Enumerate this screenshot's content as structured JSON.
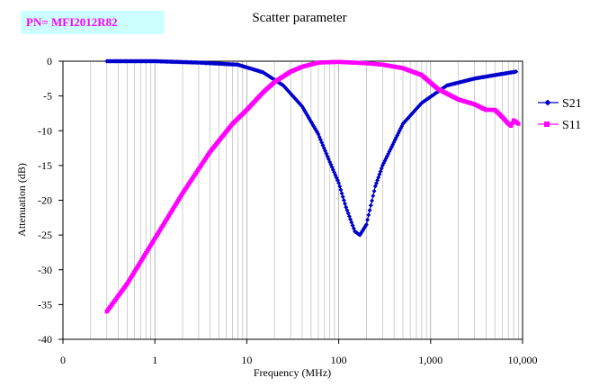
{
  "header": {
    "part_number": "PN= MFI2012R82"
  },
  "chart_data": {
    "type": "scatter",
    "title": "Scatter parameter",
    "xlabel": "Frequency (MHz)",
    "ylabel": "Attenuation (dB)",
    "xscale": "log (with 0 label at left)",
    "xlim": [
      0.1,
      10000
    ],
    "ylim": [
      -40,
      0
    ],
    "x_tick_labels": [
      "0",
      "1",
      "10",
      "100",
      "1,000",
      "10,000"
    ],
    "x_tick_values": [
      0.1,
      1,
      10,
      100,
      1000,
      10000
    ],
    "y_tick_labels": [
      "0",
      "-5",
      "-10",
      "-15",
      "-20",
      "-25",
      "-30",
      "-35",
      "-40"
    ],
    "y_tick_values": [
      0,
      -5,
      -10,
      -15,
      -20,
      -25,
      -30,
      -35,
      -40
    ],
    "grid": "vertical log gridlines",
    "legend_position": "right",
    "series": [
      {
        "name": "S21",
        "color": "#0000cc",
        "marker": "diamond",
        "points": [
          [
            0.3,
            0.0
          ],
          [
            1,
            0.0
          ],
          [
            3,
            -0.2
          ],
          [
            8,
            -0.5
          ],
          [
            15,
            -1.6
          ],
          [
            25,
            -3.5
          ],
          [
            40,
            -6.5
          ],
          [
            60,
            -10.5
          ],
          [
            80,
            -14.5
          ],
          [
            100,
            -17.5
          ],
          [
            120,
            -21
          ],
          [
            150,
            -24.5
          ],
          [
            170,
            -25
          ],
          [
            200,
            -23.5
          ],
          [
            250,
            -18
          ],
          [
            300,
            -15
          ],
          [
            500,
            -9
          ],
          [
            800,
            -6
          ],
          [
            1500,
            -3.5
          ],
          [
            3000,
            -2.5
          ],
          [
            5000,
            -2
          ],
          [
            8500,
            -1.5
          ]
        ]
      },
      {
        "name": "S11",
        "color": "#ff00ff",
        "marker": "square",
        "points": [
          [
            0.3,
            -36
          ],
          [
            0.5,
            -32
          ],
          [
            1,
            -25.5
          ],
          [
            2,
            -19
          ],
          [
            4,
            -13
          ],
          [
            7,
            -9
          ],
          [
            10,
            -7
          ],
          [
            15,
            -4.5
          ],
          [
            20,
            -3
          ],
          [
            30,
            -1.5
          ],
          [
            40,
            -0.8
          ],
          [
            60,
            -0.2
          ],
          [
            100,
            -0.1
          ],
          [
            200,
            -0.3
          ],
          [
            300,
            -0.5
          ],
          [
            500,
            -1
          ],
          [
            800,
            -2
          ],
          [
            1200,
            -4
          ],
          [
            2000,
            -5.5
          ],
          [
            3000,
            -6.2
          ],
          [
            4000,
            -7
          ],
          [
            5000,
            -7
          ],
          [
            6000,
            -8
          ],
          [
            7000,
            -9
          ],
          [
            7500,
            -9.3
          ],
          [
            8000,
            -8.5
          ],
          [
            9000,
            -9
          ]
        ]
      }
    ]
  }
}
